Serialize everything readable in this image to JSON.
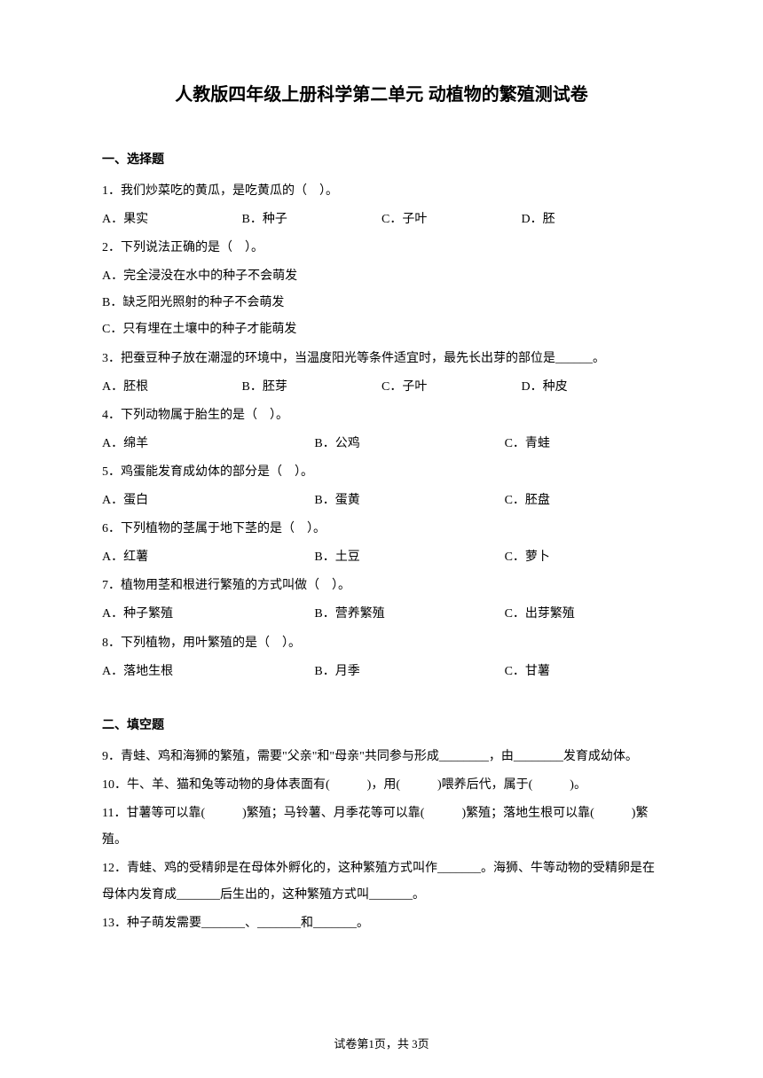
{
  "title": "人教版四年级上册科学第二单元 动植物的繁殖测试卷",
  "section1": {
    "header": "一、选择题",
    "q1": {
      "text": "1．我们炒菜吃的黄瓜，是吃黄瓜的（　）。",
      "a": "A．果实",
      "b": "B．种子",
      "c": "C．子叶",
      "d": "D．胚"
    },
    "q2": {
      "text": "2．下列说法正确的是（　）。",
      "a": "A．完全浸没在水中的种子不会萌发",
      "b": "B．缺乏阳光照射的种子不会萌发",
      "c": "C．只有埋在土壤中的种子才能萌发"
    },
    "q3": {
      "text": "3．把蚕豆种子放在潮湿的环境中，当温度阳光等条件适宜时，最先长出芽的部位是______。",
      "a": "A．胚根",
      "b": "B．胚芽",
      "c": "C．子叶",
      "d": "D．种皮"
    },
    "q4": {
      "text": "4．下列动物属于胎生的是（　）。",
      "a": "A．绵羊",
      "b": "B．公鸡",
      "c": "C．青蛙"
    },
    "q5": {
      "text": "5．鸡蛋能发育成幼体的部分是（　）。",
      "a": "A．蛋白",
      "b": "B．蛋黄",
      "c": "C．胚盘"
    },
    "q6": {
      "text": "6．下列植物的茎属于地下茎的是（　）。",
      "a": "A．红薯",
      "b": "B．土豆",
      "c": "C．萝卜"
    },
    "q7": {
      "text": "7．植物用茎和根进行繁殖的方式叫做（　）。",
      "a": "A．种子繁殖",
      "b": "B．营养繁殖",
      "c": "C．出芽繁殖"
    },
    "q8": {
      "text": "8．下列植物，用叶繁殖的是（　）。",
      "a": "A．落地生根",
      "b": "B．月季",
      "c": "C．甘薯"
    }
  },
  "section2": {
    "header": "二、填空题",
    "q9": "9．青蛙、鸡和海狮的繁殖，需要\"父亲\"和\"母亲\"共同参与形成________，由________发育成幼体。",
    "q10": "10．牛、羊、猫和兔等动物的身体表面有(　　　)，用(　　　)喂养后代，属于(　　　)。",
    "q11": "11．甘薯等可以靠(　　　)繁殖；马铃薯、月季花等可以靠(　　　)繁殖；落地生根可以靠(　　　)繁殖。",
    "q12": "12．青蛙、鸡的受精卵是在母体外孵化的，这种繁殖方式叫作_______。海狮、牛等动物的受精卵是在母体内发育成_______后生出的，这种繁殖方式叫_______。",
    "q13": "13．种子萌发需要_______、_______和_______。"
  },
  "footer": "试卷第1页，共 3页"
}
